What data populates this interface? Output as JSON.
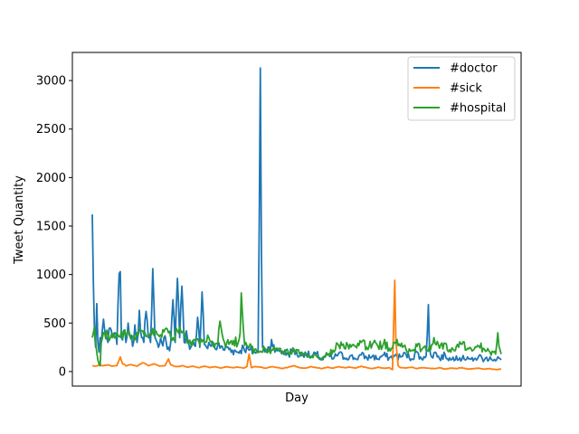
{
  "chart_data": {
    "type": "line",
    "title": "",
    "xlabel": "Day",
    "ylabel": "Tweet Quantity",
    "ylim": [
      -150,
      3290
    ],
    "yticks": [
      0,
      500,
      1000,
      1500,
      2000,
      2500,
      3000
    ],
    "xticks_visible": false,
    "grid": false,
    "legend_position": "upper right",
    "x_count": 366,
    "series": [
      {
        "name": "#doctor",
        "color": "#1f77b4",
        "keypoints": [
          [
            0,
            1620
          ],
          [
            1,
            900
          ],
          [
            2,
            400
          ],
          [
            3,
            250
          ],
          [
            4,
            700
          ],
          [
            5,
            300
          ],
          [
            6,
            200
          ],
          [
            7,
            350
          ],
          [
            8,
            300
          ],
          [
            10,
            540
          ],
          [
            12,
            380
          ],
          [
            14,
            300
          ],
          [
            16,
            450
          ],
          [
            18,
            350
          ],
          [
            20,
            400
          ],
          [
            22,
            280
          ],
          [
            24,
            1010
          ],
          [
            25,
            1030
          ],
          [
            26,
            350
          ],
          [
            28,
            420
          ],
          [
            30,
            300
          ],
          [
            32,
            500
          ],
          [
            34,
            350
          ],
          [
            36,
            260
          ],
          [
            38,
            480
          ],
          [
            40,
            300
          ],
          [
            42,
            630
          ],
          [
            44,
            350
          ],
          [
            46,
            300
          ],
          [
            48,
            620
          ],
          [
            50,
            350
          ],
          [
            52,
            300
          ],
          [
            54,
            1060
          ],
          [
            56,
            350
          ],
          [
            58,
            300
          ],
          [
            60,
            280
          ],
          [
            62,
            300
          ],
          [
            64,
            350
          ],
          [
            66,
            300
          ],
          [
            68,
            250
          ],
          [
            70,
            300
          ],
          [
            72,
            740
          ],
          [
            74,
            300
          ],
          [
            76,
            960
          ],
          [
            78,
            350
          ],
          [
            80,
            880
          ],
          [
            82,
            300
          ],
          [
            84,
            420
          ],
          [
            86,
            300
          ],
          [
            88,
            250
          ],
          [
            90,
            320
          ],
          [
            92,
            260
          ],
          [
            94,
            560
          ],
          [
            96,
            250
          ],
          [
            98,
            820
          ],
          [
            100,
            280
          ],
          [
            102,
            250
          ],
          [
            104,
            300
          ],
          [
            106,
            260
          ],
          [
            108,
            300
          ],
          [
            110,
            230
          ],
          [
            112,
            270
          ],
          [
            114,
            240
          ],
          [
            116,
            260
          ],
          [
            118,
            220
          ],
          [
            120,
            250
          ],
          [
            125,
            220
          ],
          [
            130,
            200
          ],
          [
            135,
            250
          ],
          [
            140,
            220
          ],
          [
            145,
            200
          ],
          [
            148,
            200
          ],
          [
            149,
            1500
          ],
          [
            150,
            3130
          ],
          [
            151,
            1200
          ],
          [
            152,
            250
          ],
          [
            155,
            220
          ],
          [
            158,
            250
          ],
          [
            160,
            330
          ],
          [
            163,
            200
          ],
          [
            166,
            230
          ],
          [
            170,
            200
          ],
          [
            175,
            180
          ],
          [
            180,
            220
          ],
          [
            185,
            160
          ],
          [
            190,
            200
          ],
          [
            195,
            150
          ],
          [
            200,
            180
          ],
          [
            205,
            120
          ],
          [
            210,
            170
          ],
          [
            215,
            130
          ],
          [
            220,
            190
          ],
          [
            225,
            140
          ],
          [
            230,
            160
          ],
          [
            235,
            130
          ],
          [
            240,
            170
          ],
          [
            245,
            140
          ],
          [
            250,
            160
          ],
          [
            255,
            130
          ],
          [
            260,
            170
          ],
          [
            265,
            140
          ],
          [
            270,
            160
          ],
          [
            275,
            150
          ],
          [
            280,
            180
          ],
          [
            285,
            130
          ],
          [
            290,
            200
          ],
          [
            293,
            150
          ],
          [
            295,
            120
          ],
          [
            298,
            160
          ],
          [
            300,
            690
          ],
          [
            301,
            250
          ],
          [
            303,
            150
          ],
          [
            306,
            200
          ],
          [
            310,
            130
          ],
          [
            315,
            170
          ],
          [
            320,
            120
          ],
          [
            325,
            160
          ],
          [
            330,
            130
          ],
          [
            335,
            150
          ],
          [
            340,
            110
          ],
          [
            345,
            160
          ],
          [
            350,
            120
          ],
          [
            355,
            150
          ],
          [
            360,
            110
          ],
          [
            363,
            140
          ],
          [
            365,
            120
          ]
        ]
      },
      {
        "name": "#sick",
        "color": "#ff7f0e",
        "keypoints": [
          [
            0,
            60
          ],
          [
            3,
            55
          ],
          [
            6,
            65
          ],
          [
            10,
            60
          ],
          [
            14,
            70
          ],
          [
            18,
            55
          ],
          [
            22,
            60
          ],
          [
            25,
            150
          ],
          [
            27,
            80
          ],
          [
            30,
            60
          ],
          [
            35,
            70
          ],
          [
            40,
            55
          ],
          [
            45,
            90
          ],
          [
            50,
            60
          ],
          [
            55,
            80
          ],
          [
            60,
            55
          ],
          [
            65,
            60
          ],
          [
            68,
            130
          ],
          [
            70,
            70
          ],
          [
            75,
            50
          ],
          [
            80,
            60
          ],
          [
            85,
            45
          ],
          [
            90,
            55
          ],
          [
            95,
            40
          ],
          [
            100,
            55
          ],
          [
            105,
            40
          ],
          [
            110,
            50
          ],
          [
            115,
            35
          ],
          [
            120,
            50
          ],
          [
            125,
            40
          ],
          [
            130,
            45
          ],
          [
            135,
            35
          ],
          [
            138,
            50
          ],
          [
            140,
            180
          ],
          [
            142,
            40
          ],
          [
            145,
            50
          ],
          [
            150,
            45
          ],
          [
            155,
            35
          ],
          [
            160,
            50
          ],
          [
            165,
            40
          ],
          [
            170,
            30
          ],
          [
            175,
            45
          ],
          [
            180,
            60
          ],
          [
            185,
            40
          ],
          [
            190,
            35
          ],
          [
            195,
            50
          ],
          [
            200,
            40
          ],
          [
            205,
            30
          ],
          [
            210,
            45
          ],
          [
            215,
            35
          ],
          [
            220,
            50
          ],
          [
            225,
            40
          ],
          [
            230,
            45
          ],
          [
            235,
            35
          ],
          [
            240,
            55
          ],
          [
            245,
            40
          ],
          [
            250,
            30
          ],
          [
            255,
            45
          ],
          [
            260,
            35
          ],
          [
            265,
            40
          ],
          [
            268,
            20
          ],
          [
            270,
            940
          ],
          [
            271,
            300
          ],
          [
            273,
            60
          ],
          [
            275,
            40
          ],
          [
            280,
            35
          ],
          [
            285,
            45
          ],
          [
            290,
            30
          ],
          [
            295,
            40
          ],
          [
            300,
            35
          ],
          [
            305,
            30
          ],
          [
            310,
            40
          ],
          [
            315,
            25
          ],
          [
            320,
            35
          ],
          [
            325,
            30
          ],
          [
            330,
            40
          ],
          [
            335,
            25
          ],
          [
            340,
            30
          ],
          [
            345,
            35
          ],
          [
            350,
            25
          ],
          [
            355,
            30
          ],
          [
            360,
            20
          ],
          [
            365,
            25
          ]
        ]
      },
      {
        "name": "#hospital",
        "color": "#2ca02c",
        "keypoints": [
          [
            0,
            350
          ],
          [
            1,
            400
          ],
          [
            2,
            460
          ],
          [
            3,
            300
          ],
          [
            4,
            200
          ],
          [
            5,
            120
          ],
          [
            6,
            80
          ],
          [
            7,
            60
          ],
          [
            8,
            300
          ],
          [
            10,
            400
          ],
          [
            14,
            380
          ],
          [
            18,
            350
          ],
          [
            22,
            400
          ],
          [
            24,
            360
          ],
          [
            28,
            390
          ],
          [
            32,
            420
          ],
          [
            36,
            350
          ],
          [
            40,
            400
          ],
          [
            44,
            420
          ],
          [
            48,
            360
          ],
          [
            52,
            400
          ],
          [
            56,
            420
          ],
          [
            60,
            360
          ],
          [
            64,
            410
          ],
          [
            68,
            400
          ],
          [
            72,
            350
          ],
          [
            76,
            420
          ],
          [
            80,
            400
          ],
          [
            84,
            340
          ],
          [
            88,
            280
          ],
          [
            92,
            320
          ],
          [
            96,
            280
          ],
          [
            100,
            300
          ],
          [
            104,
            350
          ],
          [
            108,
            260
          ],
          [
            112,
            280
          ],
          [
            114,
            520
          ],
          [
            116,
            380
          ],
          [
            118,
            300
          ],
          [
            122,
            280
          ],
          [
            126,
            320
          ],
          [
            130,
            290
          ],
          [
            132,
            400
          ],
          [
            133,
            810
          ],
          [
            134,
            600
          ],
          [
            136,
            270
          ],
          [
            140,
            250
          ],
          [
            145,
            230
          ],
          [
            150,
            210
          ],
          [
            155,
            230
          ],
          [
            160,
            220
          ],
          [
            165,
            240
          ],
          [
            170,
            210
          ],
          [
            175,
            200
          ],
          [
            180,
            230
          ],
          [
            185,
            180
          ],
          [
            190,
            190
          ],
          [
            195,
            140
          ],
          [
            200,
            160
          ],
          [
            205,
            140
          ],
          [
            210,
            170
          ],
          [
            215,
            220
          ],
          [
            220,
            270
          ],
          [
            225,
            240
          ],
          [
            230,
            280
          ],
          [
            235,
            260
          ],
          [
            240,
            300
          ],
          [
            245,
            250
          ],
          [
            250,
            280
          ],
          [
            255,
            260
          ],
          [
            260,
            290
          ],
          [
            265,
            240
          ],
          [
            270,
            300
          ],
          [
            275,
            260
          ],
          [
            280,
            230
          ],
          [
            285,
            220
          ],
          [
            290,
            260
          ],
          [
            295,
            240
          ],
          [
            300,
            210
          ],
          [
            305,
            350
          ],
          [
            310,
            240
          ],
          [
            315,
            290
          ],
          [
            320,
            200
          ],
          [
            325,
            260
          ],
          [
            330,
            280
          ],
          [
            335,
            240
          ],
          [
            340,
            220
          ],
          [
            345,
            260
          ],
          [
            350,
            230
          ],
          [
            355,
            200
          ],
          [
            360,
            180
          ],
          [
            362,
            400
          ],
          [
            363,
            260
          ],
          [
            365,
            180
          ]
        ]
      }
    ]
  }
}
